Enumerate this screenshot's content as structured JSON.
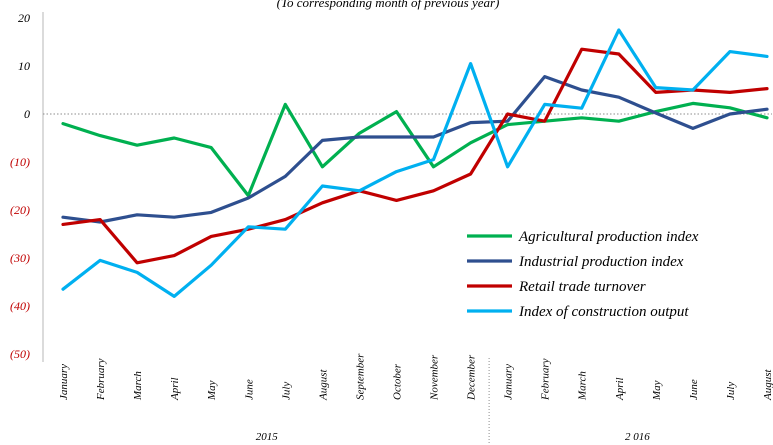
{
  "chart_data": {
    "type": "line",
    "subtitle": "(To corresponding month of previous year)",
    "categories": [
      "January",
      "February",
      "March",
      "April",
      "May",
      "June",
      "July",
      "August",
      "September",
      "October",
      "November",
      "December",
      "January",
      "February",
      "March",
      "April",
      "May",
      "June",
      "July",
      "August"
    ],
    "groups": [
      {
        "label": "2015",
        "start": 0,
        "end": 11
      },
      {
        "label": "2 016",
        "start": 12,
        "end": 19
      }
    ],
    "y_ticks": [
      {
        "value": 20,
        "label": "20"
      },
      {
        "value": 10,
        "label": "10"
      },
      {
        "value": 0,
        "label": "0"
      },
      {
        "value": -10,
        "label": "(10)"
      },
      {
        "value": -20,
        "label": "(20)"
      },
      {
        "value": -30,
        "label": "(30)"
      },
      {
        "value": -40,
        "label": "(40)"
      },
      {
        "value": -50,
        "label": "(50)"
      }
    ],
    "ylim": [
      -50,
      20
    ],
    "grid": false,
    "zero_line": true,
    "legend_position": "lower-right",
    "series": [
      {
        "name": "Agricultural production index",
        "color": "#00b050",
        "values": [
          -2,
          -4.5,
          -6.5,
          -5,
          -7,
          -17,
          2,
          -11,
          -4,
          0.5,
          -11,
          -6,
          -2.2,
          -1.5,
          -0.8,
          -1.5,
          0.5,
          2.2,
          1.3,
          -0.8
        ]
      },
      {
        "name": "Industrial production index",
        "color": "#2e4f8f",
        "values": [
          -21.5,
          -22.5,
          -21,
          -21.5,
          -20.5,
          -17.5,
          -13,
          -5.5,
          -4.8,
          -4.8,
          -4.8,
          -1.8,
          -1.5,
          7.8,
          5,
          3.5,
          0.2,
          -3,
          0,
          1
        ]
      },
      {
        "name": "Retail trade turnover",
        "color": "#c00000",
        "values": [
          -23,
          -22,
          -31,
          -29.5,
          -25.5,
          -24,
          -22,
          -18.5,
          -16,
          -18,
          -16,
          -12.5,
          0,
          -1.5,
          13.5,
          12.5,
          4.5,
          5,
          4.5,
          5.3
        ]
      },
      {
        "name": "Index of construction output",
        "color": "#00b0f0",
        "values": [
          -36.5,
          -30.5,
          -33,
          -38,
          -31.5,
          -23.5,
          -24,
          -15,
          -16,
          -12,
          -9.5,
          10.5,
          -11,
          2,
          1.2,
          17.5,
          5.5,
          5,
          13,
          12
        ]
      }
    ]
  }
}
